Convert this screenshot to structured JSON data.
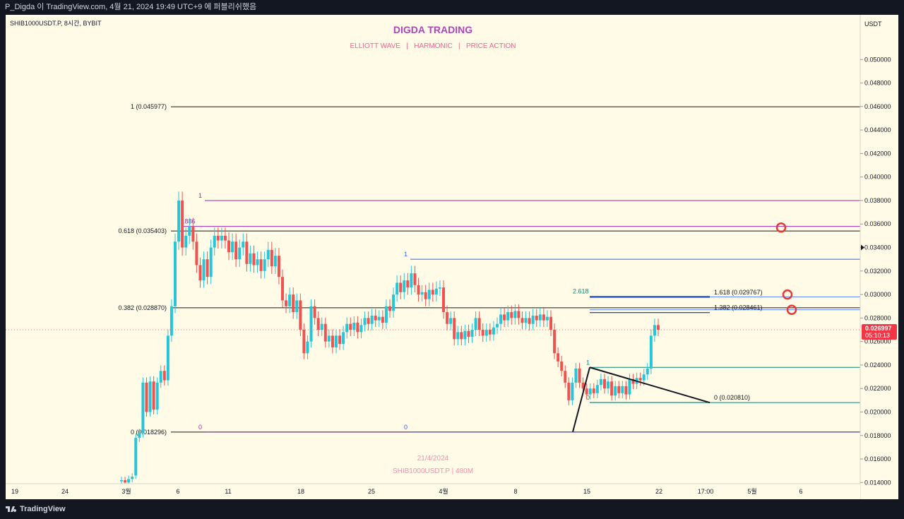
{
  "header": {
    "publish_info": "P_Digda 이 TradingView.com, 4월 21, 2024 19:49 UTC+9 에 퍼블리쉬했음"
  },
  "legend": {
    "symbol": "SHIB1000USDT.P, 8시간, BYBIT"
  },
  "watermark": {
    "title": "DIGDA TRADING",
    "subtitle": "ELLIOTT WAVE   |   HARMONIC   |   PRICE ACTION",
    "date": "21/4/2024",
    "symbol_tf": "SHIB1000USDT.P | 480M"
  },
  "footer": {
    "brand": "TradingView"
  },
  "colors": {
    "bg": "#fffbe6",
    "up": "#26c6da",
    "down": "#ef5350",
    "fib_main": "#131722",
    "purple": "#9c27b0",
    "blue": "#2962ff",
    "teal": "#00897b",
    "circle": "#e53935",
    "price_tag": "#f23645"
  },
  "chart_data": {
    "type": "candlestick",
    "title": "SHIB1000USDT.P, 8시간, BYBIT",
    "currency_label": "USDT",
    "ylim": [
      0.0139,
      0.0526
    ],
    "y_ticks": [
      "0.050000",
      "0.048000",
      "0.046000",
      "0.044000",
      "0.042000",
      "0.040000",
      "0.038000",
      "0.036000",
      "0.034000",
      "0.032000",
      "0.030000",
      "0.028000",
      "0.026000",
      "0.024000",
      "0.022000",
      "0.020000",
      "0.018000",
      "0.016000",
      "0.014000"
    ],
    "x_ticks": [
      "19",
      "24",
      "3월",
      "6",
      "11",
      "18",
      "25",
      "4월",
      "8",
      "15",
      "22",
      "17:00",
      "5월",
      "6"
    ],
    "last_price": "0.026997",
    "countdown": "05:10:13",
    "candle_series": [
      {
        "o": 0.0141,
        "c": 0.0142
      },
      {
        "o": 0.0142,
        "c": 0.014
      },
      {
        "o": 0.014,
        "c": 0.0143
      },
      {
        "o": 0.0143,
        "c": 0.0145
      },
      {
        "o": 0.0146,
        "c": 0.0178
      },
      {
        "o": 0.0178,
        "c": 0.0182
      },
      {
        "o": 0.0182,
        "c": 0.0225
      },
      {
        "o": 0.0225,
        "c": 0.02
      },
      {
        "o": 0.02,
        "c": 0.0226
      },
      {
        "o": 0.0226,
        "c": 0.0202
      },
      {
        "o": 0.0202,
        "c": 0.0225
      },
      {
        "o": 0.0225,
        "c": 0.0235
      },
      {
        "o": 0.0235,
        "c": 0.0227
      },
      {
        "o": 0.0227,
        "c": 0.0265
      },
      {
        "o": 0.0265,
        "c": 0.029
      },
      {
        "o": 0.029,
        "c": 0.0345
      },
      {
        "o": 0.0345,
        "c": 0.038
      },
      {
        "o": 0.038,
        "c": 0.034
      },
      {
        "o": 0.034,
        "c": 0.035
      },
      {
        "o": 0.035,
        "c": 0.0358
      },
      {
        "o": 0.0358,
        "c": 0.0345
      },
      {
        "o": 0.0345,
        "c": 0.0325
      },
      {
        "o": 0.0325,
        "c": 0.0312
      },
      {
        "o": 0.0312,
        "c": 0.033
      },
      {
        "o": 0.033,
        "c": 0.0315
      },
      {
        "o": 0.0315,
        "c": 0.034
      },
      {
        "o": 0.034,
        "c": 0.035
      },
      {
        "o": 0.035,
        "c": 0.0346
      },
      {
        "o": 0.0346,
        "c": 0.035
      },
      {
        "o": 0.035,
        "c": 0.0346
      },
      {
        "o": 0.0346,
        "c": 0.0336
      },
      {
        "o": 0.0336,
        "c": 0.0345
      },
      {
        "o": 0.0345,
        "c": 0.033
      },
      {
        "o": 0.033,
        "c": 0.034
      },
      {
        "o": 0.034,
        "c": 0.0345
      },
      {
        "o": 0.0345,
        "c": 0.0326
      },
      {
        "o": 0.0326,
        "c": 0.0335
      },
      {
        "o": 0.0335,
        "c": 0.0325
      },
      {
        "o": 0.0325,
        "c": 0.033
      },
      {
        "o": 0.033,
        "c": 0.032
      },
      {
        "o": 0.032,
        "c": 0.033
      },
      {
        "o": 0.033,
        "c": 0.0338
      },
      {
        "o": 0.0338,
        "c": 0.0324
      },
      {
        "o": 0.0324,
        "c": 0.0333
      },
      {
        "o": 0.0333,
        "c": 0.0315
      },
      {
        "o": 0.0315,
        "c": 0.0295
      },
      {
        "o": 0.0295,
        "c": 0.029
      },
      {
        "o": 0.029,
        "c": 0.03
      },
      {
        "o": 0.03,
        "c": 0.0285
      },
      {
        "o": 0.0285,
        "c": 0.0295
      },
      {
        "o": 0.0295,
        "c": 0.027
      },
      {
        "o": 0.027,
        "c": 0.025
      },
      {
        "o": 0.025,
        "c": 0.026
      },
      {
        "o": 0.026,
        "c": 0.029
      },
      {
        "o": 0.029,
        "c": 0.028
      },
      {
        "o": 0.028,
        "c": 0.027
      },
      {
        "o": 0.027,
        "c": 0.0275
      },
      {
        "o": 0.0275,
        "c": 0.026
      },
      {
        "o": 0.026,
        "c": 0.0265
      },
      {
        "o": 0.0265,
        "c": 0.0255
      },
      {
        "o": 0.0255,
        "c": 0.0265
      },
      {
        "o": 0.0265,
        "c": 0.0258
      },
      {
        "o": 0.0258,
        "c": 0.0268
      },
      {
        "o": 0.0268,
        "c": 0.0275
      },
      {
        "o": 0.0275,
        "c": 0.027
      },
      {
        "o": 0.027,
        "c": 0.0276
      },
      {
        "o": 0.0276,
        "c": 0.0268
      },
      {
        "o": 0.0268,
        "c": 0.0274
      },
      {
        "o": 0.0274,
        "c": 0.028
      },
      {
        "o": 0.028,
        "c": 0.0275
      },
      {
        "o": 0.0275,
        "c": 0.0282
      },
      {
        "o": 0.0282,
        "c": 0.0278
      },
      {
        "o": 0.0278,
        "c": 0.0281
      },
      {
        "o": 0.0281,
        "c": 0.0276
      },
      {
        "o": 0.0276,
        "c": 0.029
      },
      {
        "o": 0.029,
        "c": 0.0286
      },
      {
        "o": 0.0286,
        "c": 0.03
      },
      {
        "o": 0.03,
        "c": 0.031
      },
      {
        "o": 0.031,
        "c": 0.0302
      },
      {
        "o": 0.0302,
        "c": 0.0312
      },
      {
        "o": 0.0312,
        "c": 0.0306
      },
      {
        "o": 0.0306,
        "c": 0.0318
      },
      {
        "o": 0.0318,
        "c": 0.0308
      },
      {
        "o": 0.0308,
        "c": 0.03
      },
      {
        "o": 0.03,
        "c": 0.0302
      },
      {
        "o": 0.0302,
        "c": 0.0296
      },
      {
        "o": 0.0296,
        "c": 0.0304
      },
      {
        "o": 0.0304,
        "c": 0.03
      },
      {
        "o": 0.03,
        "c": 0.0305
      },
      {
        "o": 0.0305,
        "c": 0.0306
      },
      {
        "o": 0.0306,
        "c": 0.0285
      },
      {
        "o": 0.0285,
        "c": 0.0275
      },
      {
        "o": 0.0275,
        "c": 0.028
      },
      {
        "o": 0.028,
        "c": 0.0262
      },
      {
        "o": 0.0262,
        "c": 0.0268
      },
      {
        "o": 0.0268,
        "c": 0.0262
      },
      {
        "o": 0.0262,
        "c": 0.0269
      },
      {
        "o": 0.0269,
        "c": 0.0264
      },
      {
        "o": 0.0264,
        "c": 0.027
      },
      {
        "o": 0.027,
        "c": 0.028
      },
      {
        "o": 0.028,
        "c": 0.027
      },
      {
        "o": 0.027,
        "c": 0.0265
      },
      {
        "o": 0.0265,
        "c": 0.027
      },
      {
        "o": 0.027,
        "c": 0.0266
      },
      {
        "o": 0.0266,
        "c": 0.0272
      },
      {
        "o": 0.0272,
        "c": 0.0275
      },
      {
        "o": 0.0275,
        "c": 0.0283
      },
      {
        "o": 0.0283,
        "c": 0.0278
      },
      {
        "o": 0.0278,
        "c": 0.0285
      },
      {
        "o": 0.0285,
        "c": 0.028
      },
      {
        "o": 0.028,
        "c": 0.0286
      },
      {
        "o": 0.0286,
        "c": 0.028
      },
      {
        "o": 0.028,
        "c": 0.0276
      },
      {
        "o": 0.0276,
        "c": 0.028
      },
      {
        "o": 0.028,
        "c": 0.0275
      },
      {
        "o": 0.0275,
        "c": 0.0282
      },
      {
        "o": 0.0282,
        "c": 0.0278
      },
      {
        "o": 0.0278,
        "c": 0.0283
      },
      {
        "o": 0.0283,
        "c": 0.0278
      },
      {
        "o": 0.0278,
        "c": 0.0281
      },
      {
        "o": 0.0281,
        "c": 0.027
      },
      {
        "o": 0.027,
        "c": 0.025
      },
      {
        "o": 0.025,
        "c": 0.0243
      },
      {
        "o": 0.0243,
        "c": 0.0235
      },
      {
        "o": 0.0235,
        "c": 0.0225
      },
      {
        "o": 0.0225,
        "c": 0.021
      },
      {
        "o": 0.021,
        "c": 0.0225
      },
      {
        "o": 0.0225,
        "c": 0.0237
      },
      {
        "o": 0.0237,
        "c": 0.0225
      },
      {
        "o": 0.0225,
        "c": 0.022
      },
      {
        "o": 0.022,
        "c": 0.0215
      },
      {
        "o": 0.0215,
        "c": 0.022
      },
      {
        "o": 0.022,
        "c": 0.0216
      },
      {
        "o": 0.0216,
        "c": 0.0223
      },
      {
        "o": 0.0223,
        "c": 0.0228
      },
      {
        "o": 0.0228,
        "c": 0.022
      },
      {
        "o": 0.022,
        "c": 0.0226
      },
      {
        "o": 0.0226,
        "c": 0.0214
      },
      {
        "o": 0.0214,
        "c": 0.0222
      },
      {
        "o": 0.0222,
        "c": 0.0216
      },
      {
        "o": 0.0216,
        "c": 0.0222
      },
      {
        "o": 0.0222,
        "c": 0.0215
      },
      {
        "o": 0.0215,
        "c": 0.0228
      },
      {
        "o": 0.0228,
        "c": 0.0224
      },
      {
        "o": 0.0224,
        "c": 0.0229
      },
      {
        "o": 0.0229,
        "c": 0.0227
      },
      {
        "o": 0.0227,
        "c": 0.0232
      },
      {
        "o": 0.0232,
        "c": 0.0237
      },
      {
        "o": 0.0237,
        "c": 0.0265
      },
      {
        "o": 0.0265,
        "c": 0.0274
      },
      {
        "o": 0.0274,
        "c": 0.027
      }
    ],
    "fib_levels": [
      {
        "ratio": "1",
        "price": "0.045977",
        "label": "1 (0.045977)"
      },
      {
        "ratio": "0.618",
        "price": "0.035403",
        "label": "0.618 (0.035403)"
      },
      {
        "ratio": "0.382",
        "price": "0.028870",
        "label": "0.382 (0.028870)"
      },
      {
        "ratio": "0",
        "price": "0.018296",
        "label": "0 (0.018296)"
      }
    ],
    "harmonic_levels": [
      {
        "label": "1",
        "price": 0.038,
        "color": "purple"
      },
      {
        "label": ".886",
        "price": 0.0358,
        "color": "purple"
      },
      {
        "label": "0",
        "price": 0.0183,
        "color": "purple"
      },
      {
        "label": "1",
        "price": 0.033,
        "color": "blue"
      },
      {
        "label": "0",
        "price": 0.0183,
        "color": "blue"
      },
      {
        "label": "2.618",
        "price": 0.02985,
        "color": "blue"
      }
    ],
    "extension_levels": [
      {
        "label": "1.618 (0.029767)",
        "price": 0.029767
      },
      {
        "label": "1.382 (0.028461)",
        "price": 0.028461
      },
      {
        "label": "0 (0.020810)",
        "price": 0.02081
      }
    ],
    "teal_levels": [
      {
        "label": "1",
        "price": 0.0238
      },
      {
        "label": "0",
        "price": 0.0208
      }
    ],
    "target_circles": [
      0.0357,
      0.03,
      0.0287
    ],
    "marker_price": 0.034
  }
}
